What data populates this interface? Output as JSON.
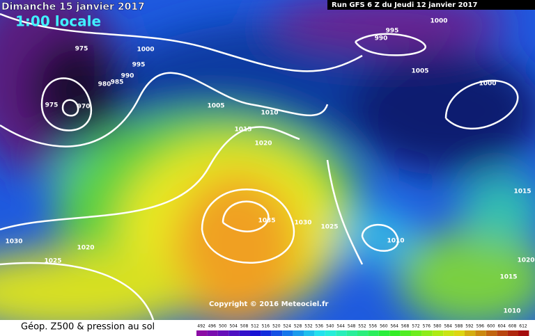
{
  "header": {
    "date": "Dimanche 15 janvier 2017",
    "time": "1:00 locale",
    "run": "Run GFS 6 Z du Jeudi 12 janvier 2017"
  },
  "isobars": {
    "labels": [
      "975",
      "1000",
      "995",
      "990",
      "985",
      "980",
      "975",
      "970",
      "1005",
      "1010",
      "1015",
      "1020",
      "1035",
      "1030",
      "1025",
      "1010",
      "995",
      "990",
      "1000",
      "1005",
      "1000",
      "1015",
      "1030",
      "1020",
      "1025",
      "1020",
      "1015",
      "1010"
    ]
  },
  "copyright": "Copyright © 2016 Meteociel.fr",
  "legend": {
    "title": "Géop. Z500 & pression au sol",
    "scale": [
      492,
      496,
      500,
      504,
      508,
      512,
      516,
      520,
      524,
      528,
      532,
      536,
      540,
      544,
      548,
      552,
      556,
      560,
      564,
      568,
      572,
      576,
      580,
      584,
      588,
      592,
      596,
      600,
      604,
      608,
      612
    ]
  }
}
